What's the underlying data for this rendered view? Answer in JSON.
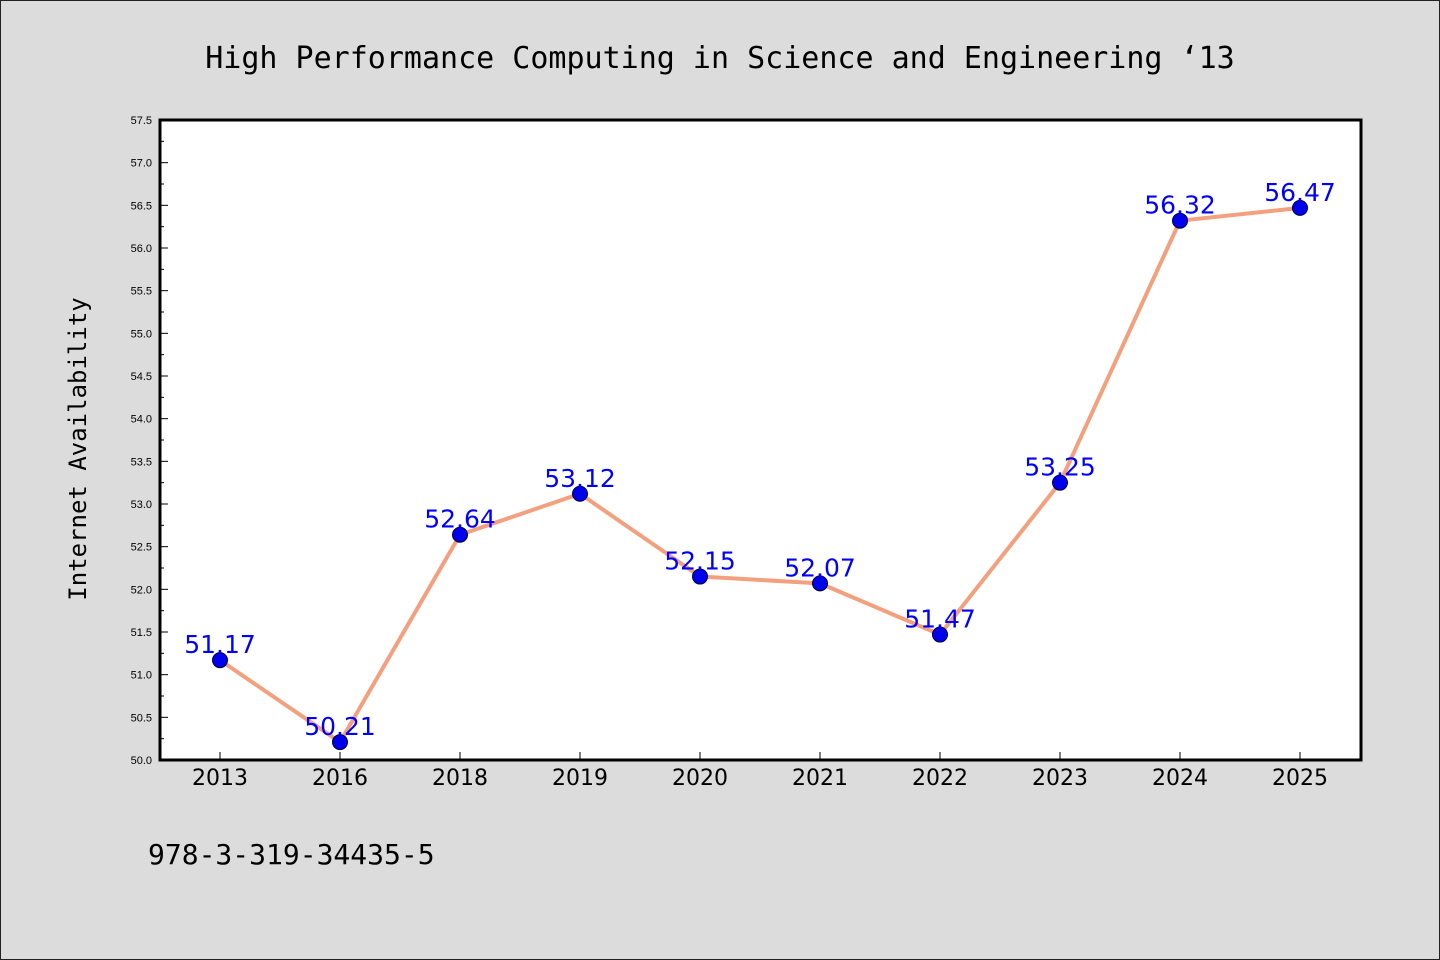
{
  "chart_data": {
    "type": "line",
    "title": "High Performance Computing in Science and Engineering  ‘13",
    "xlabel": "",
    "ylabel": "Internet Availability",
    "categories": [
      "2013",
      "2016",
      "2018",
      "2019",
      "2020",
      "2021",
      "2022",
      "2023",
      "2024",
      "2025"
    ],
    "series": [
      {
        "values": [
          51.17,
          50.21,
          52.64,
          53.12,
          52.15,
          52.07,
          51.47,
          53.25,
          56.32,
          56.47
        ],
        "labels": [
          "51.17",
          "50.21",
          "52.64",
          "53.12",
          "52.15",
          "52.07",
          "51.47",
          "53.25",
          "56.32",
          "56.47"
        ]
      }
    ],
    "ylim": [
      50.0,
      57.5
    ],
    "yticks": [
      "50.0",
      "50.5",
      "51.0",
      "51.5",
      "52.0",
      "52.5",
      "53.0",
      "53.5",
      "54.0",
      "54.5",
      "55.0",
      "55.5",
      "56.0",
      "56.5",
      "57.0",
      "57.5"
    ],
    "grid": false,
    "legend": "none",
    "colors": {
      "line": "#f4a07e",
      "marker": "#0000ee",
      "data_label": "#0000ff",
      "plot_background": "#ffffff",
      "page_background": "#dcdcdc"
    }
  },
  "footer": {
    "isbn": "978-3-319-34435-5"
  }
}
